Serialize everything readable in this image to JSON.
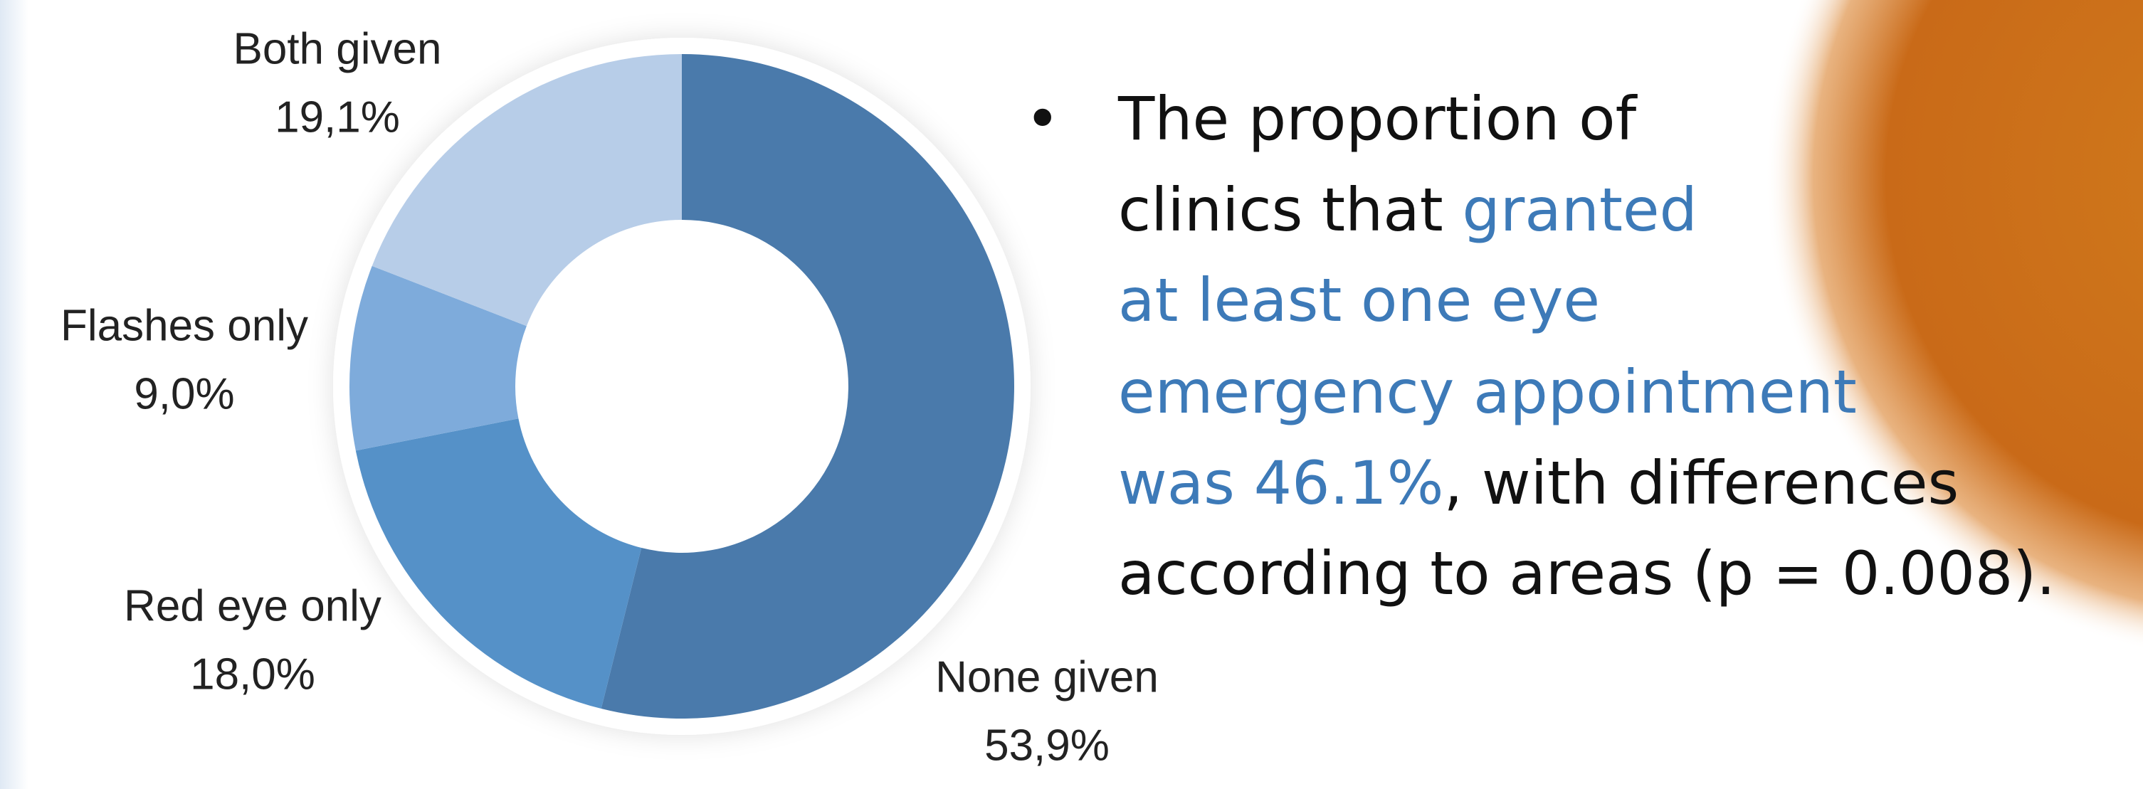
{
  "chart_data": {
    "type": "pie",
    "categories": [
      "None given",
      "Red eye only",
      "Flashes only",
      "Both given"
    ],
    "values": [
      53.9,
      18.0,
      9.0,
      19.1
    ],
    "value_labels": [
      "53,9%",
      "18,0%",
      "9,0%",
      "19,1%"
    ],
    "colors": [
      "#4a7aab",
      "#5591c8",
      "#7eabdb",
      "#b7cde8"
    ],
    "donut": true
  },
  "bullet": [
    [
      {
        "text": "The proportion of",
        "color": "#111111"
      }
    ],
    [
      {
        "text": "clinics that ",
        "color": "#111111"
      },
      {
        "text": "granted",
        "color": "#3d7ab8"
      }
    ],
    [
      {
        "text": "at least one eye",
        "color": "#3d7ab8"
      }
    ],
    [
      {
        "text": "emergency appointment",
        "color": "#3d7ab8"
      }
    ],
    [
      {
        "text": "was 46.1%",
        "color": "#3d7ab8"
      },
      {
        "text": ", with differences",
        "color": "#111111"
      }
    ],
    [
      {
        "text": "according to areas (p = 0.008).",
        "color": "#111111"
      }
    ]
  ]
}
